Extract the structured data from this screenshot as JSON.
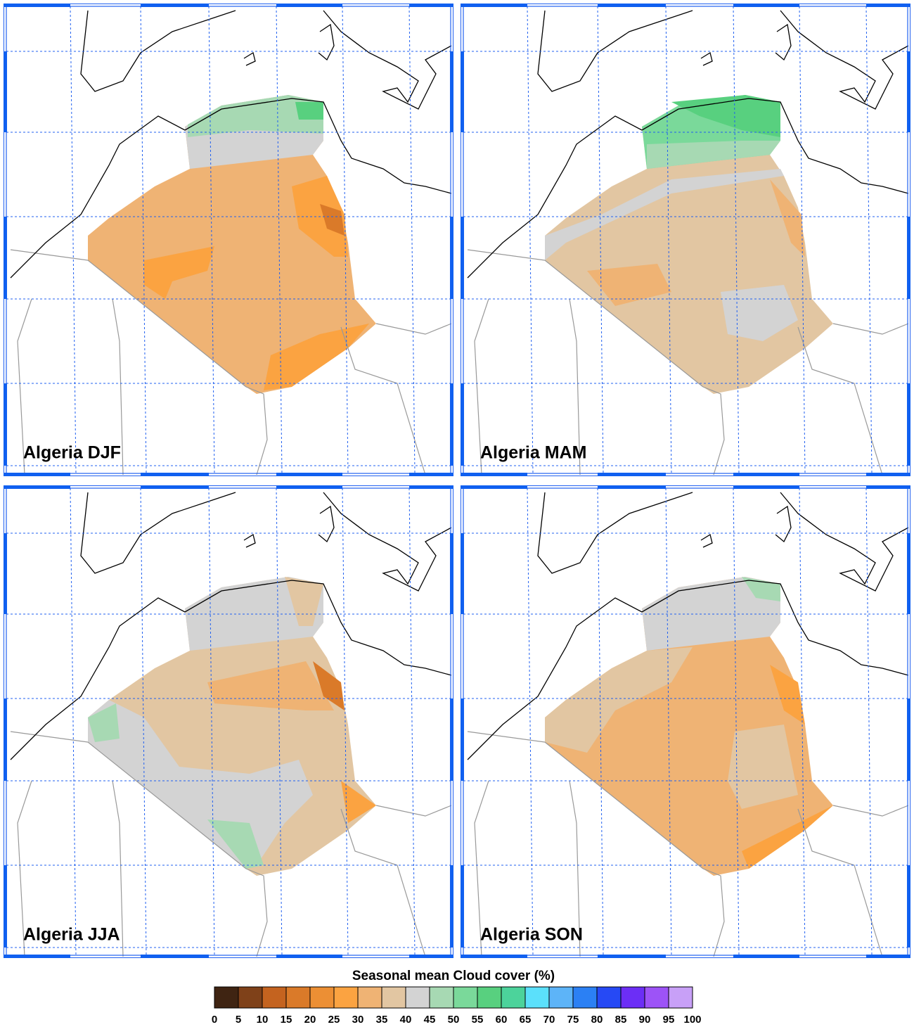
{
  "panels": [
    {
      "title": "Algeria DJF"
    },
    {
      "title": "Algeria MAM"
    },
    {
      "title": "Algeria JJA"
    },
    {
      "title": "Algeria SON"
    }
  ],
  "colorbar": {
    "title": "Seasonal mean Cloud cover (%)",
    "levels": [
      0,
      5,
      10,
      15,
      20,
      25,
      30,
      35,
      40,
      45,
      50,
      55,
      60,
      65,
      70,
      75,
      80,
      85,
      90,
      95,
      100
    ],
    "colors": [
      "#3f2412",
      "#7f4119",
      "#c4631f",
      "#da7a29",
      "#ec8f34",
      "#fba341",
      "#efb374",
      "#e2c6a2",
      "#d3d3d3",
      "#a7d9b3",
      "#7ad99a",
      "#58d07f",
      "#4cd39b",
      "#5be0fb",
      "#5db4f8",
      "#2b80f4",
      "#2649f5",
      "#6c2ef6",
      "#9d53f7",
      "#c8a0f7"
    ]
  }
}
